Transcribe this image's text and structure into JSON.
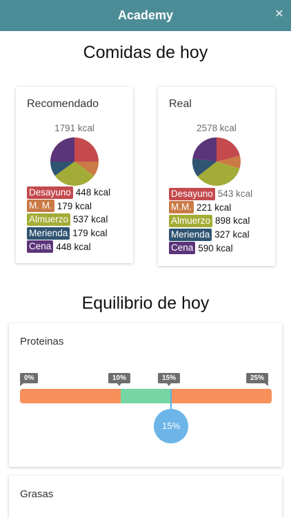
{
  "header": {
    "title": "Academy",
    "close_icon": "close-icon"
  },
  "meals": {
    "heading": "Comidas de hoy",
    "recommended": {
      "title": "Recomendado",
      "total": "1791 kcal",
      "items": [
        {
          "tag": "Desayuno",
          "value": "448 kcal",
          "kcal": 448,
          "color": "#c44a4e"
        },
        {
          "tag": "M. M.",
          "value": "179 kcal",
          "kcal": 179,
          "color": "#c97a45"
        },
        {
          "tag": "Almuerzo",
          "value": "537 kcal",
          "kcal": 537,
          "color": "#a3ac36"
        },
        {
          "tag": "Merienda",
          "value": "179 kcal",
          "kcal": 179,
          "color": "#2f5472"
        },
        {
          "tag": "Cena",
          "value": "448 kcal",
          "kcal": 448,
          "color": "#5b3479"
        }
      ]
    },
    "real": {
      "title": "Real",
      "total": "2578 kcal",
      "items": [
        {
          "tag": "Desayuno",
          "value": "543 kcal",
          "kcal": 543,
          "color": "#c44a4e"
        },
        {
          "tag": "M.M.",
          "value": "221 kcal",
          "kcal": 221,
          "color": "#c97a45"
        },
        {
          "tag": "Almuerzo",
          "value": "898 kcal",
          "kcal": 898,
          "color": "#a3ac36"
        },
        {
          "tag": "Merienda",
          "value": "327 kcal",
          "kcal": 327,
          "color": "#2f5472"
        },
        {
          "tag": "Cena",
          "value": "590 kcal",
          "kcal": 590,
          "color": "#5b3479"
        }
      ]
    }
  },
  "balance": {
    "heading": "Equilibrio de hoy",
    "proteins": {
      "title": "Proteinas",
      "scale_labels": [
        "0%",
        "10%",
        "15%",
        "25%"
      ],
      "scale_max": 25,
      "range_min": 10,
      "range_max": 15,
      "current": 15,
      "current_label": "15%"
    },
    "fats": {
      "title": "Grasas"
    }
  },
  "colors": {
    "header_bg": "#4c8c96",
    "bar_out_of_range": "#f7905a",
    "bar_in_range": "#76d6a3",
    "knob": "#6db5e8"
  }
}
